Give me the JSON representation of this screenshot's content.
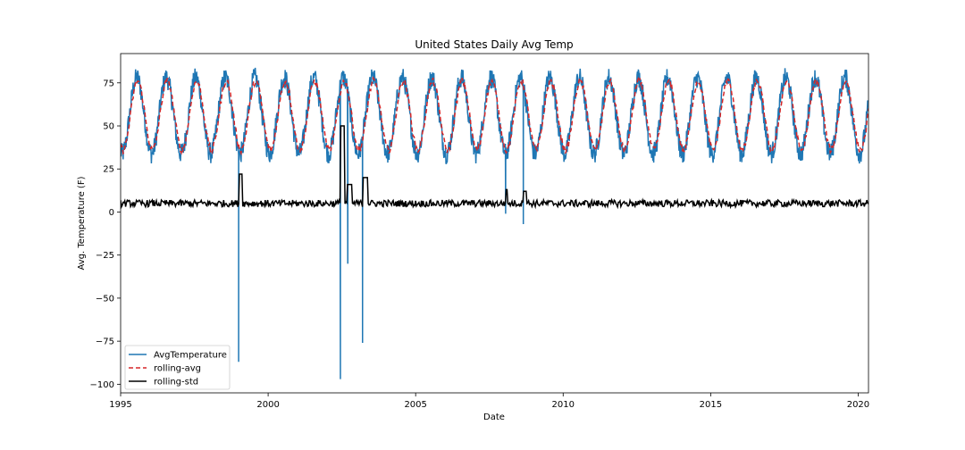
{
  "chart_data": {
    "type": "line",
    "title": "United States Daily Avg Temp",
    "xlabel": "Date",
    "ylabel": "Avg. Temperature (F)",
    "xlim": [
      1995.0,
      2020.35
    ],
    "ylim": [
      -105,
      92
    ],
    "x_ticks": [
      1995,
      2000,
      2005,
      2010,
      2015,
      2020
    ],
    "x_tick_labels": [
      "1995",
      "2000",
      "2005",
      "2010",
      "2015",
      "2020"
    ],
    "y_ticks": [
      -100,
      -75,
      -50,
      -25,
      0,
      25,
      50,
      75
    ],
    "y_tick_labels": [
      "−100",
      "−75",
      "−50",
      "−25",
      "0",
      "25",
      "50",
      "75"
    ],
    "legend_position": "lower-left",
    "grid": false,
    "series": [
      {
        "name": "AvgTemperature",
        "color": "#1f77b4",
        "style": "solid",
        "seasonal": {
          "mean": 56,
          "amplitude": 22,
          "peak_fraction": 0.55,
          "noise": 6
        },
        "anomalies": [
          {
            "x": 1999.0,
            "y": -87
          },
          {
            "x": 2002.45,
            "y": -97
          },
          {
            "x": 2002.7,
            "y": -30
          },
          {
            "x": 2003.2,
            "y": -76
          },
          {
            "x": 2008.05,
            "y": -1
          },
          {
            "x": 2008.65,
            "y": -7
          }
        ]
      },
      {
        "name": "rolling-avg",
        "color": "#d62728",
        "style": "dashed",
        "seasonal": {
          "mean": 56,
          "amplitude": 20,
          "peak_fraction": 0.58,
          "noise": 0
        }
      },
      {
        "name": "rolling-std",
        "color": "#000000",
        "style": "solid",
        "baseline": 5,
        "noise": 2,
        "steps": [
          {
            "x_start": 1999.0,
            "x_end": 1999.12,
            "y": 22
          },
          {
            "x_start": 2002.45,
            "x_end": 2002.6,
            "y": 50
          },
          {
            "x_start": 2002.68,
            "x_end": 2002.85,
            "y": 16
          },
          {
            "x_start": 2003.2,
            "x_end": 2003.38,
            "y": 20
          },
          {
            "x_start": 2008.05,
            "x_end": 2008.12,
            "y": 13
          },
          {
            "x_start": 2008.65,
            "x_end": 2008.75,
            "y": 12
          }
        ]
      }
    ]
  }
}
